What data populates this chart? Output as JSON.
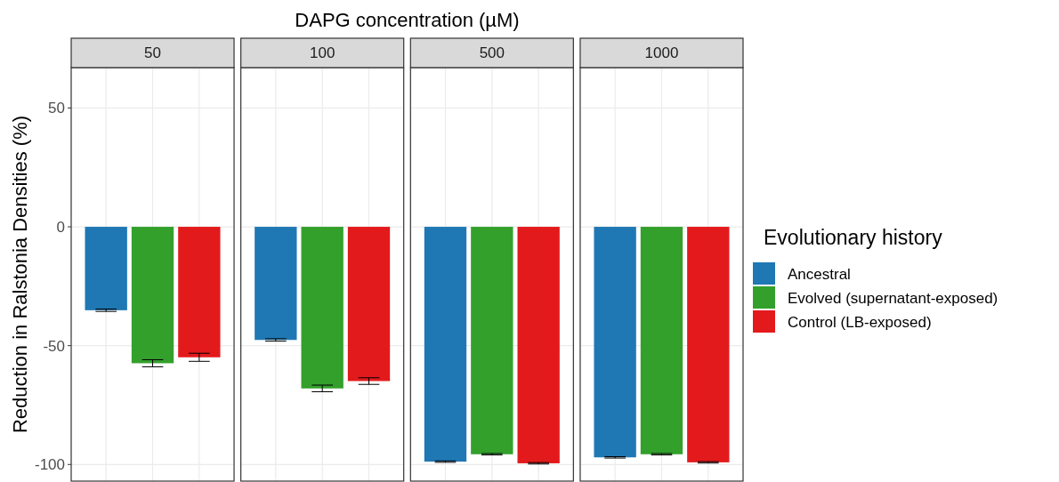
{
  "chart_data": {
    "type": "bar",
    "xlabel": "DAPG concentration (µM)",
    "ylabel": "Reduction in Ralstonia Densities (%)",
    "categories": [
      "50",
      "100",
      "500",
      "1000"
    ],
    "ylim": [
      -107,
      67
    ],
    "yticks": [
      -100,
      -50,
      0,
      50
    ],
    "grid": true,
    "legend": "right",
    "legend_title": "Evolutionary history",
    "series": [
      {
        "name": "Ancestral",
        "color": "#1f78b4",
        "values": [
          -35.1,
          -47.6,
          -98.8,
          -97
        ],
        "errors": [
          0.5,
          0.5,
          0.3,
          0.3
        ]
      },
      {
        "name": "Evolved (supernatant-exposed)",
        "color": "#33a02c",
        "values": [
          -57.4,
          -68,
          -95.7,
          -95.7
        ],
        "errors": [
          1.5,
          1.4,
          0.3,
          0.3
        ]
      },
      {
        "name": "Control  (LB-exposed)",
        "color": "#e31a1c",
        "values": [
          -54.9,
          -64.9,
          -99.5,
          -99.1
        ],
        "errors": [
          1.7,
          1.4,
          0.3,
          0.3
        ]
      }
    ]
  }
}
